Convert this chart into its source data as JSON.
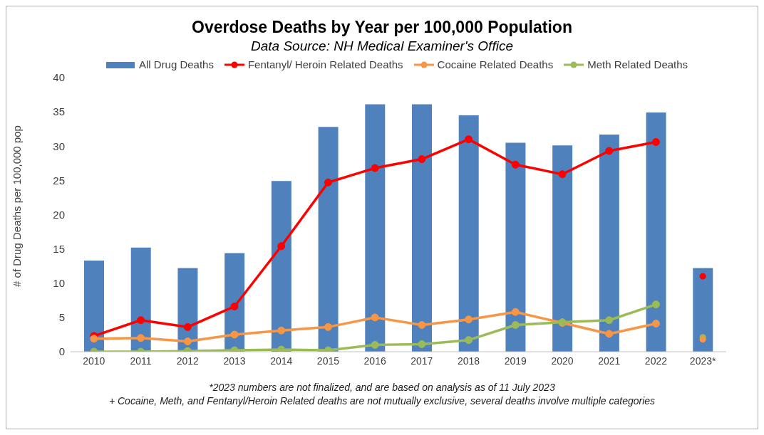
{
  "chart_data": {
    "type": "bar",
    "title": "Overdose Deaths by Year per 100,000 Population",
    "subtitle": "Data Source: NH Medical Examiner's Office",
    "ylabel": "# of Drug Deaths per 100,000 pop",
    "categories": [
      "2010",
      "2011",
      "2012",
      "2013",
      "2014",
      "2015",
      "2016",
      "2017",
      "2018",
      "2019",
      "2020",
      "2021",
      "2022",
      "2023*"
    ],
    "series": [
      {
        "name": "All Drug Deaths",
        "color": "#4f81bd",
        "values": [
          13.3,
          15.2,
          12.2,
          14.4,
          24.9,
          32.8,
          36.1,
          36.1,
          34.5,
          30.5,
          30.1,
          31.7,
          34.9,
          12.2
        ]
      },
      {
        "type": "line",
        "name": "Fentanyl/ Heroin Related Deaths",
        "color": "#ff0000",
        "values": [
          2.3,
          4.6,
          3.6,
          6.6,
          15.4,
          24.7,
          26.8,
          28.1,
          31.0,
          27.3,
          25.9,
          29.3,
          30.6,
          null
        ]
      },
      {
        "type": "line",
        "name": "Cocaine Related Deaths",
        "color": "#f79646",
        "values": [
          1.9,
          2.0,
          1.5,
          2.5,
          3.1,
          3.6,
          5.0,
          3.9,
          4.7,
          5.8,
          4.2,
          2.6,
          4.1,
          null
        ]
      },
      {
        "type": "line",
        "name": "Meth Related Deaths",
        "color": "#9bbb59",
        "values": [
          0,
          0,
          0.1,
          0.2,
          0.3,
          0.2,
          1.0,
          1.1,
          1.7,
          3.9,
          4.3,
          4.6,
          6.9,
          null
        ]
      },
      {
        "type": "scatter",
        "color": "#ff0000",
        "x": [
          "2023*"
        ],
        "values": [
          11.0
        ]
      },
      {
        "type": "scatter",
        "color": "#9bbb59",
        "x": [
          "2023*"
        ],
        "values": [
          2.1
        ]
      },
      {
        "type": "scatter",
        "color": "#f79646",
        "x": [
          "2023*"
        ],
        "values": [
          1.8
        ]
      }
    ],
    "ylim": [
      0,
      40
    ],
    "yticks": [
      0,
      5,
      10,
      15,
      20,
      25,
      30,
      35,
      40
    ],
    "grid": false,
    "legend": "top",
    "marker": "circle",
    "line_style": "solid",
    "annotations": [
      "*2023 numbers are not finalized, and are based on analysis as of 11 July 2023",
      "+ Cocaine, Meth, and Fentanyl/Heroin Related deaths are not mutually exclusive, several deaths involve multiple categories"
    ]
  }
}
